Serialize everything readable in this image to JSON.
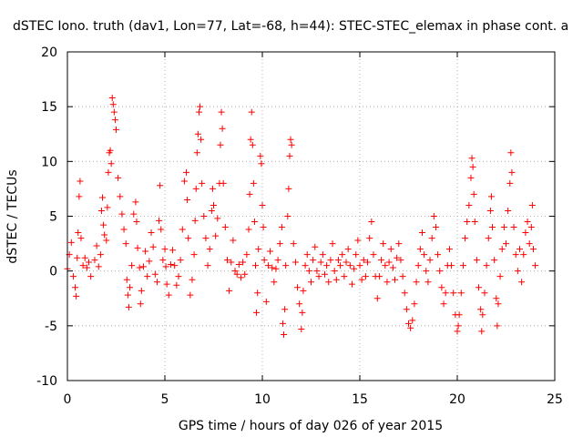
{
  "chart_data": {
    "type": "scatter",
    "title": "dSTEC Iono. truth (dav1, Lon=77, Lat=-68, h=44): STEC-STEC_elemax in phase cont. a",
    "xlabel": "GPS time / hours of day 026 of year 2015",
    "ylabel": "dSTEC  / TECUs",
    "xlim": [
      0,
      25
    ],
    "ylim": [
      -10,
      20
    ],
    "xticks": [
      0,
      5,
      10,
      15,
      20,
      25
    ],
    "yticks": [
      -10,
      -5,
      0,
      5,
      10,
      15,
      20
    ],
    "grid": true,
    "marker": "+",
    "color": "#ff0000",
    "series": [
      {
        "points": [
          [
            0.0,
            0.2
          ],
          [
            0.1,
            1.5
          ],
          [
            0.2,
            2.6
          ],
          [
            0.3,
            -0.5
          ],
          [
            0.4,
            -1.5
          ],
          [
            0.45,
            -2.3
          ],
          [
            0.5,
            1.2
          ],
          [
            0.55,
            3.5
          ],
          [
            0.6,
            6.8
          ],
          [
            0.65,
            8.2
          ],
          [
            0.7,
            3.0
          ],
          [
            0.8,
            0.5
          ],
          [
            0.9,
            1.2
          ],
          [
            1.0,
            0.3
          ],
          [
            1.1,
            0.8
          ],
          [
            1.2,
            -0.5
          ],
          [
            1.4,
            1.0
          ],
          [
            1.5,
            2.3
          ],
          [
            1.6,
            0.4
          ],
          [
            1.7,
            1.5
          ],
          [
            1.75,
            5.5
          ],
          [
            1.8,
            6.7
          ],
          [
            1.85,
            4.2
          ],
          [
            1.9,
            3.3
          ],
          [
            2.0,
            2.8
          ],
          [
            2.05,
            5.8
          ],
          [
            2.1,
            9.0
          ],
          [
            2.15,
            10.8
          ],
          [
            2.2,
            11.0
          ],
          [
            2.25,
            9.8
          ],
          [
            2.3,
            15.8
          ],
          [
            2.35,
            15.2
          ],
          [
            2.4,
            14.5
          ],
          [
            2.45,
            13.8
          ],
          [
            2.5,
            12.9
          ],
          [
            2.6,
            8.5
          ],
          [
            2.7,
            6.8
          ],
          [
            2.8,
            5.2
          ],
          [
            2.9,
            3.8
          ],
          [
            3.0,
            2.5
          ],
          [
            3.05,
            -0.8
          ],
          [
            3.1,
            -2.2
          ],
          [
            3.15,
            -3.3
          ],
          [
            3.2,
            -1.5
          ],
          [
            3.3,
            0.5
          ],
          [
            3.4,
            5.2
          ],
          [
            3.5,
            6.3
          ],
          [
            3.55,
            4.5
          ],
          [
            3.6,
            2.1
          ],
          [
            3.7,
            0.3
          ],
          [
            3.75,
            -3.0
          ],
          [
            3.8,
            -1.8
          ],
          [
            3.9,
            0.4
          ],
          [
            4.0,
            1.8
          ],
          [
            4.1,
            -0.5
          ],
          [
            4.2,
            0.9
          ],
          [
            4.3,
            3.5
          ],
          [
            4.4,
            2.2
          ],
          [
            4.5,
            -0.3
          ],
          [
            4.6,
            -1.0
          ],
          [
            4.7,
            4.6
          ],
          [
            4.75,
            7.8
          ],
          [
            4.8,
            3.8
          ],
          [
            4.9,
            1.0
          ],
          [
            5.0,
            2.0
          ],
          [
            5.05,
            0.4
          ],
          [
            5.1,
            -1.2
          ],
          [
            5.2,
            -2.2
          ],
          [
            5.3,
            0.6
          ],
          [
            5.4,
            1.9
          ],
          [
            5.5,
            0.5
          ],
          [
            5.6,
            -1.3
          ],
          [
            5.7,
            -0.5
          ],
          [
            5.8,
            1.0
          ],
          [
            5.9,
            3.8
          ],
          [
            6.0,
            8.2
          ],
          [
            6.1,
            9.0
          ],
          [
            6.15,
            6.5
          ],
          [
            6.2,
            3.0
          ],
          [
            6.3,
            -2.2
          ],
          [
            6.4,
            -0.8
          ],
          [
            6.5,
            1.5
          ],
          [
            6.55,
            4.6
          ],
          [
            6.6,
            7.5
          ],
          [
            6.65,
            10.8
          ],
          [
            6.7,
            12.5
          ],
          [
            6.75,
            14.5
          ],
          [
            6.8,
            15.0
          ],
          [
            6.85,
            12.0
          ],
          [
            6.9,
            8.0
          ],
          [
            7.0,
            5.0
          ],
          [
            7.1,
            3.0
          ],
          [
            7.2,
            0.5
          ],
          [
            7.3,
            2.0
          ],
          [
            7.4,
            5.5
          ],
          [
            7.45,
            7.5
          ],
          [
            7.5,
            6.0
          ],
          [
            7.6,
            3.2
          ],
          [
            7.7,
            4.8
          ],
          [
            7.8,
            8.0
          ],
          [
            7.85,
            11.5
          ],
          [
            7.9,
            14.5
          ],
          [
            7.95,
            13.0
          ],
          [
            8.0,
            8.0
          ],
          [
            8.1,
            4.0
          ],
          [
            8.2,
            1.0
          ],
          [
            8.3,
            -1.8
          ],
          [
            8.4,
            0.8
          ],
          [
            8.5,
            2.8
          ],
          [
            8.6,
            0.0
          ],
          [
            8.7,
            -0.3
          ],
          [
            8.8,
            0.6
          ],
          [
            8.9,
            -0.6
          ],
          [
            9.0,
            0.8
          ],
          [
            9.1,
            -0.3
          ],
          [
            9.2,
            1.5
          ],
          [
            9.3,
            3.8
          ],
          [
            9.35,
            7.0
          ],
          [
            9.4,
            12.0
          ],
          [
            9.45,
            14.5
          ],
          [
            9.5,
            11.5
          ],
          [
            9.55,
            8.0
          ],
          [
            9.6,
            4.5
          ],
          [
            9.65,
            0.5
          ],
          [
            9.7,
            -3.8
          ],
          [
            9.75,
            -2.0
          ],
          [
            9.8,
            2.0
          ],
          [
            9.9,
            10.5
          ],
          [
            9.95,
            9.8
          ],
          [
            10.0,
            6.0
          ],
          [
            10.05,
            4.0
          ],
          [
            10.1,
            1.0
          ],
          [
            10.2,
            -2.8
          ],
          [
            10.3,
            0.5
          ],
          [
            10.4,
            1.8
          ],
          [
            10.5,
            0.3
          ],
          [
            10.6,
            -1.0
          ],
          [
            10.7,
            0.2
          ],
          [
            10.8,
            1.0
          ],
          [
            10.9,
            2.5
          ],
          [
            11.0,
            4.0
          ],
          [
            11.05,
            -4.8
          ],
          [
            11.1,
            -5.8
          ],
          [
            11.15,
            -3.5
          ],
          [
            11.2,
            0.5
          ],
          [
            11.3,
            5.0
          ],
          [
            11.35,
            7.5
          ],
          [
            11.4,
            10.5
          ],
          [
            11.45,
            12.0
          ],
          [
            11.5,
            11.5
          ],
          [
            11.6,
            2.5
          ],
          [
            11.7,
            0.8
          ],
          [
            11.8,
            -1.5
          ],
          [
            11.9,
            -3.0
          ],
          [
            12.0,
            -5.3
          ],
          [
            12.05,
            -3.8
          ],
          [
            12.1,
            -1.8
          ],
          [
            12.2,
            0.5
          ],
          [
            12.3,
            1.5
          ],
          [
            12.4,
            0.0
          ],
          [
            12.5,
            -1.0
          ],
          [
            12.6,
            1.0
          ],
          [
            12.7,
            2.2
          ],
          [
            12.8,
            0.0
          ],
          [
            12.9,
            -0.5
          ],
          [
            13.0,
            0.8
          ],
          [
            13.1,
            1.5
          ],
          [
            13.2,
            -0.3
          ],
          [
            13.3,
            0.5
          ],
          [
            13.4,
            -1.0
          ],
          [
            13.5,
            1.0
          ],
          [
            13.6,
            2.5
          ],
          [
            13.7,
            0.0
          ],
          [
            13.8,
            -0.8
          ],
          [
            13.9,
            1.0
          ],
          [
            14.0,
            0.5
          ],
          [
            14.1,
            1.5
          ],
          [
            14.2,
            -0.5
          ],
          [
            14.3,
            0.8
          ],
          [
            14.4,
            2.0
          ],
          [
            14.5,
            0.5
          ],
          [
            14.6,
            -1.2
          ],
          [
            14.7,
            0.2
          ],
          [
            14.8,
            1.5
          ],
          [
            14.9,
            2.8
          ],
          [
            15.0,
            0.5
          ],
          [
            15.1,
            -0.8
          ],
          [
            15.2,
            1.0
          ],
          [
            15.3,
            -0.5
          ],
          [
            15.4,
            0.8
          ],
          [
            15.5,
            3.0
          ],
          [
            15.6,
            4.5
          ],
          [
            15.7,
            1.5
          ],
          [
            15.8,
            -0.5
          ],
          [
            15.9,
            -2.5
          ],
          [
            16.0,
            -0.5
          ],
          [
            16.1,
            1.0
          ],
          [
            16.2,
            2.5
          ],
          [
            16.3,
            0.5
          ],
          [
            16.4,
            -1.0
          ],
          [
            16.5,
            0.8
          ],
          [
            16.6,
            2.0
          ],
          [
            16.7,
            0.3
          ],
          [
            16.8,
            -0.8
          ],
          [
            16.9,
            1.2
          ],
          [
            17.0,
            2.5
          ],
          [
            17.1,
            1.0
          ],
          [
            17.2,
            -0.5
          ],
          [
            17.3,
            -2.0
          ],
          [
            17.4,
            -3.5
          ],
          [
            17.5,
            -4.8
          ],
          [
            17.6,
            -5.2
          ],
          [
            17.7,
            -4.5
          ],
          [
            17.8,
            -3.0
          ],
          [
            17.9,
            -1.0
          ],
          [
            18.0,
            0.5
          ],
          [
            18.1,
            2.0
          ],
          [
            18.2,
            3.5
          ],
          [
            18.3,
            1.5
          ],
          [
            18.4,
            0.0
          ],
          [
            18.5,
            -1.0
          ],
          [
            18.6,
            1.0
          ],
          [
            18.7,
            3.0
          ],
          [
            18.8,
            5.0
          ],
          [
            18.9,
            4.0
          ],
          [
            19.0,
            1.5
          ],
          [
            19.1,
            0.0
          ],
          [
            19.2,
            -1.5
          ],
          [
            19.3,
            -3.0
          ],
          [
            19.4,
            -2.0
          ],
          [
            19.5,
            0.5
          ],
          [
            19.6,
            2.0
          ],
          [
            19.7,
            0.5
          ],
          [
            19.8,
            -2.0
          ],
          [
            19.9,
            -4.0
          ],
          [
            20.0,
            -5.5
          ],
          [
            20.05,
            -5.0
          ],
          [
            20.1,
            -4.0
          ],
          [
            20.2,
            -2.0
          ],
          [
            20.3,
            0.5
          ],
          [
            20.4,
            3.0
          ],
          [
            20.5,
            4.5
          ],
          [
            20.6,
            6.0
          ],
          [
            20.7,
            8.5
          ],
          [
            20.75,
            10.3
          ],
          [
            20.8,
            9.5
          ],
          [
            20.85,
            7.0
          ],
          [
            20.9,
            4.5
          ],
          [
            21.0,
            1.0
          ],
          [
            21.1,
            -1.5
          ],
          [
            21.2,
            -3.5
          ],
          [
            21.25,
            -5.5
          ],
          [
            21.3,
            -4.0
          ],
          [
            21.4,
            -2.0
          ],
          [
            21.5,
            0.5
          ],
          [
            21.6,
            3.0
          ],
          [
            21.7,
            5.5
          ],
          [
            21.75,
            6.8
          ],
          [
            21.8,
            4.0
          ],
          [
            21.9,
            1.0
          ],
          [
            22.0,
            -2.5
          ],
          [
            22.05,
            -5.0
          ],
          [
            22.1,
            -3.0
          ],
          [
            22.2,
            -0.5
          ],
          [
            22.3,
            2.0
          ],
          [
            22.4,
            4.0
          ],
          [
            22.5,
            2.5
          ],
          [
            22.6,
            5.5
          ],
          [
            22.7,
            8.0
          ],
          [
            22.75,
            10.8
          ],
          [
            22.8,
            9.0
          ],
          [
            22.9,
            4.0
          ],
          [
            23.0,
            1.5
          ],
          [
            23.1,
            0.0
          ],
          [
            23.2,
            2.0
          ],
          [
            23.3,
            -1.0
          ],
          [
            23.4,
            1.5
          ],
          [
            23.5,
            3.5
          ],
          [
            23.6,
            4.5
          ],
          [
            23.7,
            2.5
          ],
          [
            23.8,
            4.0
          ],
          [
            23.85,
            6.0
          ],
          [
            23.9,
            2.0
          ],
          [
            24.0,
            0.5
          ]
        ]
      }
    ]
  }
}
